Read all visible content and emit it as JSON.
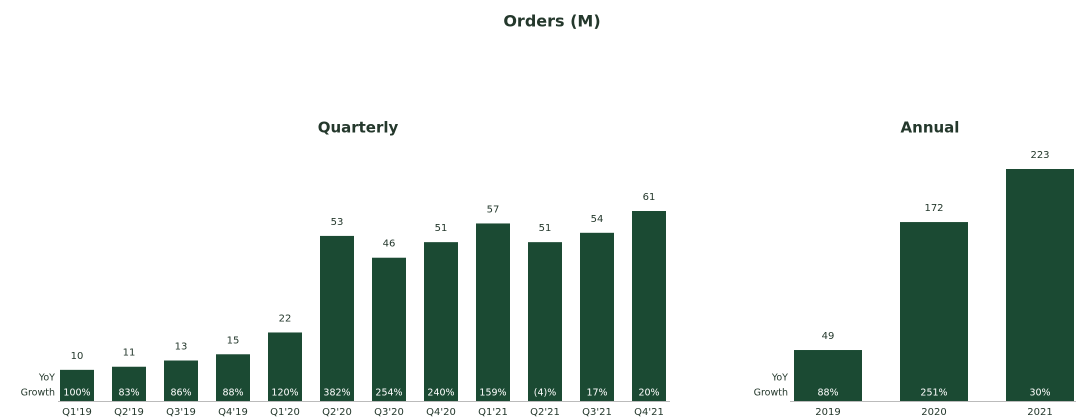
{
  "title": "Orders (M)",
  "chart_data": [
    {
      "type": "bar",
      "title": "Quarterly",
      "color": "#1b4a33",
      "categories": [
        "Q1'19",
        "Q2'19",
        "Q3'19",
        "Q4'19",
        "Q1'20",
        "Q2'20",
        "Q3'20",
        "Q4'20",
        "Q1'21",
        "Q2'21",
        "Q3'21",
        "Q4'21"
      ],
      "values": [
        10,
        11,
        13,
        15,
        22,
        53,
        46,
        51,
        57,
        51,
        54,
        61
      ],
      "growth_caption": [
        "YoY",
        "Growth"
      ],
      "growth": [
        100,
        83,
        86,
        88,
        120,
        382,
        254,
        240,
        159,
        -4,
        17,
        20
      ],
      "growth_labels": [
        "100%",
        "83%",
        "86%",
        "88%",
        "120%",
        "382%",
        "254%",
        "240%",
        "159%",
        "(4)%",
        "17%",
        "20%"
      ]
    },
    {
      "type": "bar",
      "title": "Annual",
      "color": "#1b4a33",
      "categories": [
        "2019",
        "2020",
        "2021"
      ],
      "values": [
        49,
        172,
        223
      ],
      "growth_caption": [
        "YoY",
        "Growth"
      ],
      "growth": [
        88,
        251,
        30
      ],
      "growth_labels": [
        "88%",
        "251%",
        "30%"
      ]
    }
  ]
}
